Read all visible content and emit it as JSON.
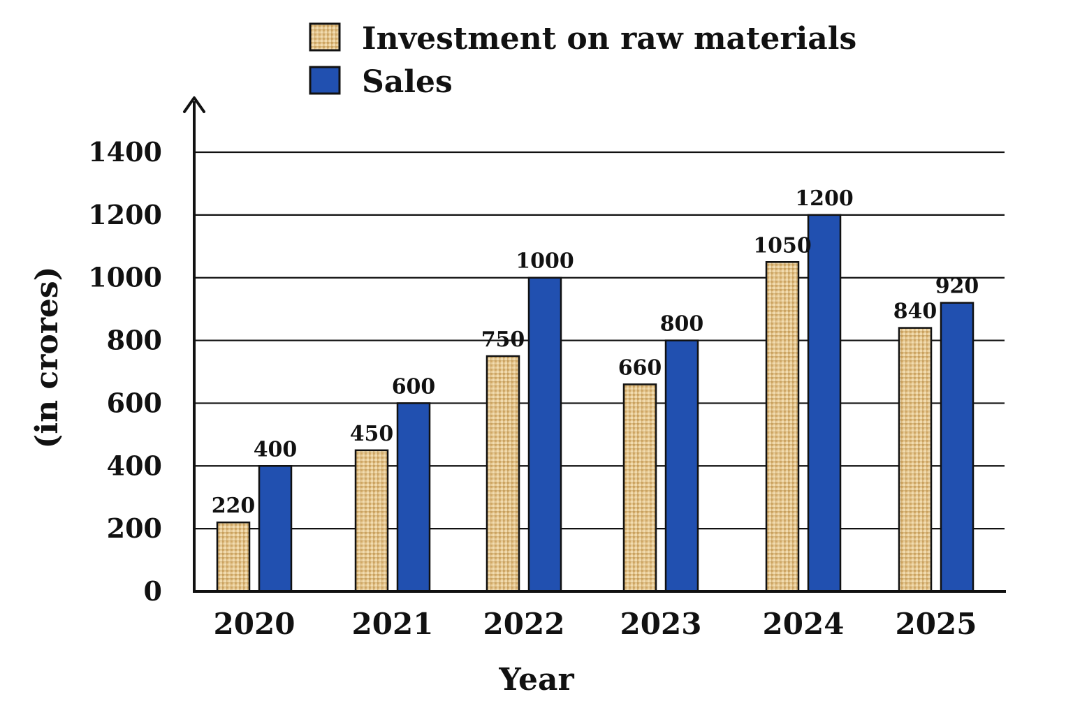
{
  "chart_data": {
    "type": "bar",
    "title": "",
    "xlabel": "Year",
    "ylabel": "(in crores)",
    "categories": [
      "2020",
      "2021",
      "2022",
      "2023",
      "2024",
      "2025"
    ],
    "series": [
      {
        "name": "Investment on raw materials",
        "values": [
          220,
          450,
          750,
          660,
          1050,
          840
        ],
        "color": "#e2c38d",
        "pattern": "woven-tan"
      },
      {
        "name": "Sales",
        "values": [
          400,
          600,
          1000,
          800,
          1200,
          920
        ],
        "color": "#2150b0",
        "pattern": "solid"
      }
    ],
    "ylim": [
      0,
      1400
    ],
    "yticks": [
      0,
      200,
      400,
      600,
      800,
      1000,
      1200,
      1400
    ],
    "grid": true,
    "legend_position": "top-center",
    "data_labels": true
  }
}
